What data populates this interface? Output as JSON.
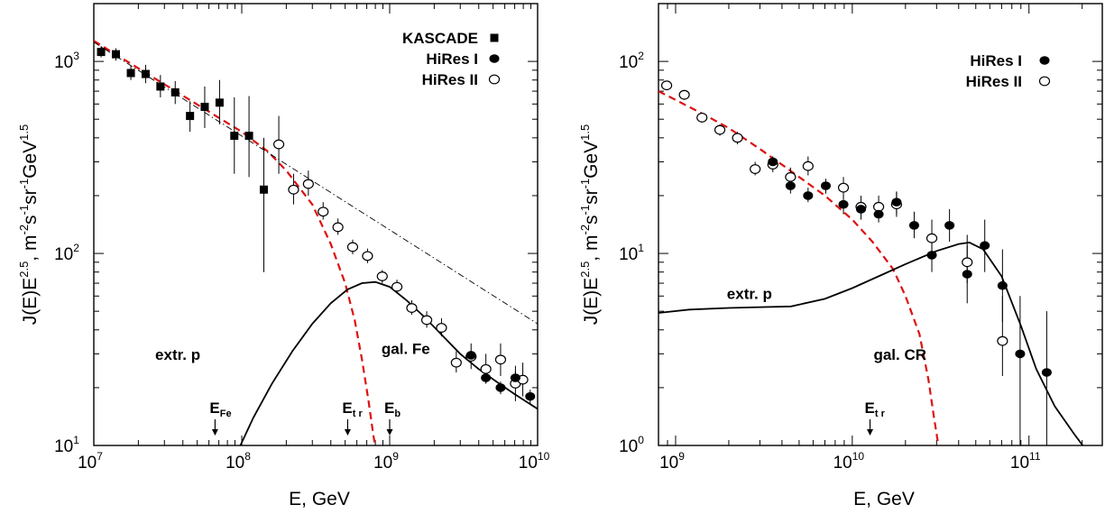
{
  "chart_data": [
    {
      "id": "left",
      "type": "scatter",
      "x_scale": "log",
      "y_scale": "log",
      "xlim": [
        10000000.0,
        10000000000.0
      ],
      "ylim": [
        10,
        2000
      ],
      "xticks": [
        {
          "value": 10000000.0,
          "base": "10",
          "exp": "7"
        },
        {
          "value": 100000000.0,
          "base": "10",
          "exp": "8"
        },
        {
          "value": 1000000000.0,
          "base": "10",
          "exp": "9"
        },
        {
          "value": 10000000000.0,
          "base": "10",
          "exp": "10"
        }
      ],
      "yticks": [
        {
          "value": 10,
          "base": "10",
          "exp": "1"
        },
        {
          "value": 100,
          "base": "10",
          "exp": "2"
        },
        {
          "value": 1000,
          "base": "10",
          "exp": "3"
        }
      ],
      "xlabel": "E, GeV",
      "ylabel": {
        "prefix": "J(E)E",
        "exp1": "2.5",
        "mid": ", m",
        "exp2": "-2",
        "s": "s",
        "exp3": "-1",
        "sr": "sr",
        "exp4": "-1",
        "gev": "GeV",
        "exp5": "1.5"
      },
      "legend": [
        {
          "label": "KASCADE",
          "marker": "square"
        },
        {
          "label": "HiRes I",
          "marker": "filled-circle"
        },
        {
          "label": "HiRes II",
          "marker": "open-circle"
        }
      ],
      "series": [
        {
          "name": "KASCADE",
          "marker": "square",
          "points": [
            [
              11200000.0,
              1120,
              1050,
              1200
            ],
            [
              14100000.0,
              1090,
              1010,
              1170
            ],
            [
              17800000.0,
              870,
              800,
              950
            ],
            [
              22400000.0,
              860,
              770,
              960
            ],
            [
              28200000.0,
              740,
              650,
              850
            ],
            [
              35500000.0,
              690,
              600,
              790
            ],
            [
              44700000.0,
              520,
              430,
              620
            ],
            [
              56200000.0,
              580,
              450,
              740
            ],
            [
              70800000.0,
              610,
              470,
              800
            ],
            [
              89100000.0,
              410,
              260,
              650
            ],
            [
              112000000.0,
              410,
              250,
              660
            ],
            [
              141000000.0,
              215,
              80,
              400
            ]
          ]
        },
        {
          "name": "HiRes II",
          "marker": "open-circle",
          "points": [
            [
              178000000.0,
              370,
              260,
              520
            ],
            [
              224000000.0,
              215,
              180,
              260
            ],
            [
              282000000.0,
              230,
              200,
              270
            ],
            [
              355000000.0,
              165,
              150,
              185
            ],
            [
              447000000.0,
              137,
              125,
              152
            ],
            [
              562000000.0,
              108,
              99,
              118
            ],
            [
              708000000.0,
              97,
              89,
              106
            ],
            [
              891000000.0,
              76,
              70,
              82
            ],
            [
              1120000000.0,
              67,
              62,
              73
            ],
            [
              1410000000.0,
              52,
              48,
              57
            ],
            [
              1780000000.0,
              45,
              41,
              50
            ],
            [
              2240000000.0,
              41,
              37,
              46
            ],
            [
              2820000000.0,
              27,
              24,
              31
            ],
            [
              3550000000.0,
              29,
              25,
              34
            ],
            [
              4470000000.0,
              25,
              21,
              30
            ],
            [
              5620000000.0,
              28,
              23,
              34
            ],
            [
              7080000000.0,
              21,
              17,
              26
            ],
            [
              7940000000.0,
              22,
              18,
              27
            ]
          ]
        },
        {
          "name": "HiRes I",
          "marker": "filled-circle",
          "points": [
            [
              3550000000.0,
              29.5,
              28,
              31
            ],
            [
              4470000000.0,
              22.5,
              21,
              24
            ],
            [
              5620000000.0,
              20,
              18.5,
              21.5
            ],
            [
              7080000000.0,
              22.5,
              20.5,
              24.5
            ],
            [
              8910000000.0,
              18,
              16.5,
              19.5
            ]
          ]
        }
      ],
      "curves": [
        {
          "name": "gal. Fe",
          "style": "red-dashed",
          "color": "#dd1111",
          "points": [
            [
              10000000.0,
              1280
            ],
            [
              30000000.0,
              760
            ],
            [
              100000000.0,
              430
            ],
            [
              150000000.0,
              340
            ],
            [
              200000000.0,
              270
            ],
            [
              300000000.0,
              180
            ],
            [
              400000000.0,
              112
            ],
            [
              500000000.0,
              70
            ],
            [
              580000000.0,
              45
            ],
            [
              650000000.0,
              28
            ],
            [
              720000000.0,
              17
            ],
            [
              780000000.0,
              11
            ],
            [
              820000000.0,
              9
            ]
          ]
        },
        {
          "name": "extr. p",
          "style": "solid",
          "color": "#000000",
          "points": [
            [
              95000000.0,
              9.5
            ],
            [
              120000000.0,
              14
            ],
            [
              160000000.0,
              21
            ],
            [
              220000000.0,
              31
            ],
            [
              300000000.0,
              43
            ],
            [
              400000000.0,
              55
            ],
            [
              520000000.0,
              65
            ],
            [
              650000000.0,
              70
            ],
            [
              800000000.0,
              71
            ],
            [
              1000000000.0,
              67
            ],
            [
              1300000000.0,
              57
            ],
            [
              1700000000.0,
              47
            ],
            [
              2300000000.0,
              37
            ],
            [
              3000000000.0,
              30
            ],
            [
              4000000000.0,
              25
            ],
            [
              5500000000.0,
              21
            ],
            [
              7000000000.0,
              18.5
            ],
            [
              10000000000.0,
              15.5
            ]
          ]
        },
        {
          "name": "power law",
          "style": "dash-dot",
          "color": "#000000",
          "points": [
            [
              10000000.0,
              1260
            ],
            [
              10000000000.0,
              43
            ]
          ]
        }
      ],
      "annotations": [
        {
          "text": "extr. p",
          "ax": 26000000.0,
          "ay": 28
        },
        {
          "text": "gal. Fe",
          "ax": 880000000.0,
          "ay": 30
        }
      ],
      "markers": [
        {
          "main": "E",
          "sub": "Fe",
          "x": 66000000.0
        },
        {
          "main": "E",
          "sub": "t r",
          "x": 520000000.0
        },
        {
          "main": "E",
          "sub": "b",
          "x": 1000000000.0
        }
      ]
    },
    {
      "id": "right",
      "type": "scatter",
      "x_scale": "log",
      "y_scale": "log",
      "xlim": [
        800000000.0,
        260000000000.0
      ],
      "ylim": [
        1,
        200
      ],
      "xticks": [
        {
          "value": 1000000000.0,
          "base": "10",
          "exp": "9"
        },
        {
          "value": 10000000000.0,
          "base": "10",
          "exp": "10"
        },
        {
          "value": 100000000000.0,
          "base": "10",
          "exp": "11"
        }
      ],
      "yticks": [
        {
          "value": 1,
          "base": "10",
          "exp": "0"
        },
        {
          "value": 10,
          "base": "10",
          "exp": "1"
        },
        {
          "value": 100,
          "base": "10",
          "exp": "2"
        }
      ],
      "xlabel": "E, GeV",
      "ylabel": {
        "prefix": "J(E)E",
        "exp1": "2.5",
        "mid": ", m",
        "exp2": "-2",
        "s": "s",
        "exp3": "-1",
        "sr": "sr",
        "exp4": "-1",
        "gev": "GeV",
        "exp5": "1.5"
      },
      "legend": [
        {
          "label": "HiRes I",
          "marker": "filled-circle"
        },
        {
          "label": "HiRes II",
          "marker": "open-circle"
        }
      ],
      "series": [
        {
          "name": "HiRes II",
          "marker": "open-circle",
          "points": [
            [
              890000000.0,
              75,
              71,
              79
            ],
            [
              1120000000.0,
              67,
              63,
              71
            ],
            [
              1410000000.0,
              51,
              48,
              54
            ],
            [
              1780000000.0,
              44,
              41,
              47
            ],
            [
              2240000000.0,
              40,
              37,
              43
            ],
            [
              2820000000.0,
              27.5,
              25.5,
              30
            ],
            [
              3550000000.0,
              29,
              26.5,
              31.5
            ],
            [
              4470000000.0,
              25,
              22.5,
              28
            ],
            [
              5620000000.0,
              28.5,
              25.5,
              32
            ],
            [
              8910000000.0,
              22,
              19.5,
              25
            ],
            [
              11200000000.0,
              17.5,
              15.5,
              20
            ],
            [
              14100000000.0,
              17.5,
              15.5,
              20
            ],
            [
              17800000000.0,
              18,
              15.5,
              21
            ],
            [
              28200000000.0,
              12,
              10,
              15
            ],
            [
              44700000000.0,
              9,
              7,
              12.5
            ],
            [
              70800000000.0,
              3.5,
              2.3,
              6
            ]
          ]
        },
        {
          "name": "HiRes I",
          "marker": "filled-circle",
          "points": [
            [
              3550000000.0,
              30,
              28,
              32
            ],
            [
              4470000000.0,
              22.5,
              20.5,
              24.5
            ],
            [
              5620000000.0,
              20,
              18.5,
              22
            ],
            [
              7080000000.0,
              22.5,
              20.5,
              24.5
            ],
            [
              8910000000.0,
              18,
              16,
              20
            ],
            [
              11200000000.0,
              17,
              15,
              19
            ],
            [
              14100000000.0,
              16,
              14.5,
              18
            ],
            [
              17800000000.0,
              18.5,
              16,
              21
            ],
            [
              22400000000.0,
              14,
              12,
              16.5
            ],
            [
              28200000000.0,
              9.8,
              8,
              12
            ],
            [
              35500000000.0,
              14,
              11.5,
              17
            ],
            [
              44700000000.0,
              7.8,
              5.5,
              11
            ],
            [
              56200000000.0,
              11,
              8,
              15
            ],
            [
              70800000000.0,
              6.8,
              4.4,
              10.5
            ],
            [
              89100000000.0,
              3,
              1,
              6
            ],
            [
              126000000000.0,
              2.4,
              1,
              5
            ]
          ]
        }
      ],
      "curves": [
        {
          "name": "gal. CR",
          "style": "red-dashed",
          "color": "#dd1111",
          "points": [
            [
              800000000.0,
              70
            ],
            [
              1000000000.0,
              63
            ],
            [
              1500000000.0,
              52
            ],
            [
              2000000000.0,
              45
            ],
            [
              3000000000.0,
              35
            ],
            [
              4000000000.0,
              29
            ],
            [
              5000000000.0,
              25
            ],
            [
              7000000000.0,
              20
            ],
            [
              10000000000.0,
              15
            ],
            [
              13000000000.0,
              11.5
            ],
            [
              17000000000.0,
              8.3
            ],
            [
              20000000000.0,
              6
            ],
            [
              24000000000.0,
              3.8
            ],
            [
              27000000000.0,
              2.2
            ],
            [
              29000000000.0,
              1.4
            ],
            [
              31000000000.0,
              0.95
            ]
          ]
        },
        {
          "name": "extr. p",
          "style": "solid",
          "color": "#000000",
          "points": [
            [
              800000000.0,
              4.9
            ],
            [
              1200000000.0,
              5.1
            ],
            [
              2000000000.0,
              5.2
            ],
            [
              3000000000.0,
              5.25
            ],
            [
              4500000000.0,
              5.3
            ],
            [
              7000000000.0,
              5.8
            ],
            [
              10000000000.0,
              6.6
            ],
            [
              15000000000.0,
              7.8
            ],
            [
              20000000000.0,
              8.8
            ],
            [
              30000000000.0,
              10.3
            ],
            [
              40000000000.0,
              11.2
            ],
            [
              46000000000.0,
              11.4
            ],
            [
              55000000000.0,
              10.5
            ],
            [
              70000000000.0,
              7.6
            ],
            [
              90000000000.0,
              4.2
            ],
            [
              110000000000.0,
              2.5
            ],
            [
              140000000000.0,
              1.6
            ],
            [
              180000000000.0,
              1.15
            ],
            [
              210000000000.0,
              0.95
            ]
          ]
        }
      ],
      "annotations": [
        {
          "text": "extr. p",
          "ax": 1950000000.0,
          "ay": 5.8
        },
        {
          "text": "gal. CR",
          "ax": 13200000000.0,
          "ay": 2.8
        }
      ],
      "markers": [
        {
          "main": "E",
          "sub": "t r",
          "x": 12600000000.0
        }
      ]
    }
  ]
}
